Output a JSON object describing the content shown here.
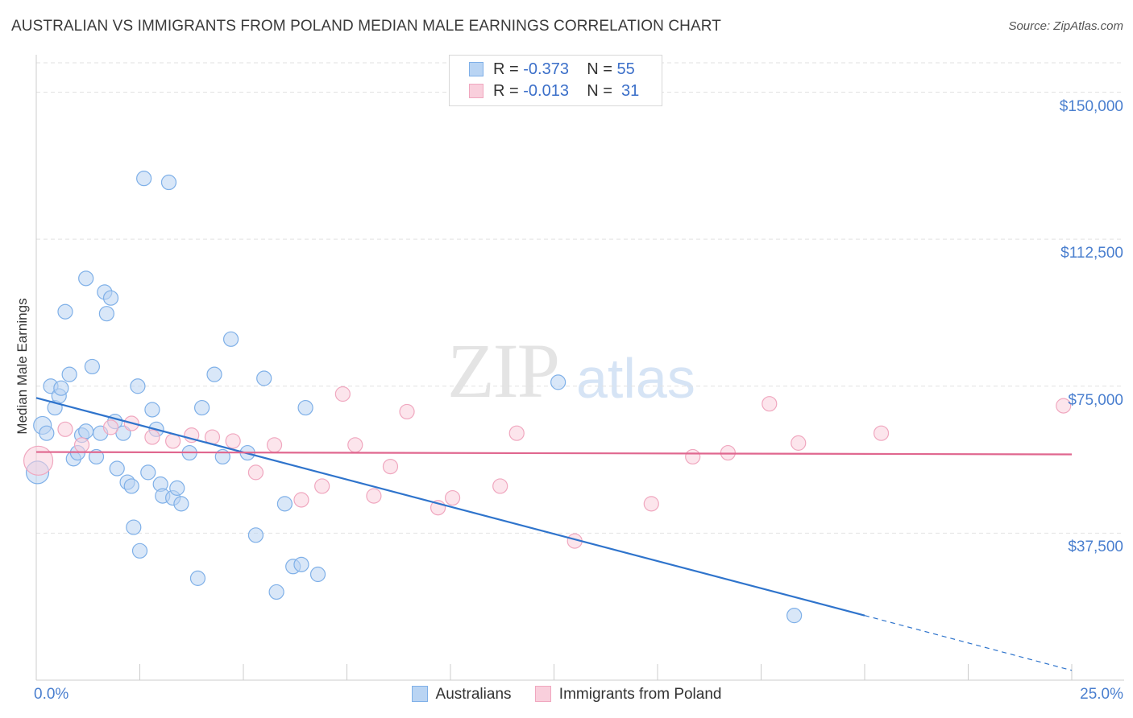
{
  "chart_data": {
    "type": "scatter",
    "title": "AUSTRALIAN VS IMMIGRANTS FROM POLAND MEDIAN MALE EARNINGS CORRELATION CHART",
    "source": "Source: ZipAtlas.com",
    "ylabel": "Median Male Earnings",
    "xlabel": "",
    "xlim": [
      0,
      25
    ],
    "ylim": [
      0,
      157500
    ],
    "x_tick_labels": {
      "left": "0.0%",
      "right": "25.0%"
    },
    "y_ticks": [
      {
        "value": 37500,
        "label": "$37,500"
      },
      {
        "value": 75000,
        "label": "$75,000"
      },
      {
        "value": 112500,
        "label": "$112,500"
      },
      {
        "value": 150000,
        "label": "$150,000"
      }
    ],
    "grid": true,
    "watermark": {
      "zip": "ZIP",
      "atlas": "atlas"
    },
    "legend": [
      {
        "name": "Australians",
        "r_label": "R = ",
        "r": "-0.373",
        "n_label": "N = ",
        "n": "55",
        "color": "#7fb0e8",
        "fill": "#b9d4f3"
      },
      {
        "name": "Immigrants from Poland",
        "r_label": "R = ",
        "r": "-0.013",
        "n_label": "N = ",
        "n": "31",
        "color": "#f0a7bf",
        "fill": "#f9cfdc"
      }
    ],
    "series": [
      {
        "name": "Australians",
        "color": "#7fb0e8",
        "line_color": "#2f74cc",
        "trend": {
          "x0": 0,
          "y0": 72000,
          "x1": 20,
          "y1": 16500,
          "dash_to_x": 25,
          "dash_to_y": 2500
        },
        "points": [
          [
            0.03,
            53000,
            14
          ],
          [
            0.15,
            65000,
            11
          ],
          [
            0.25,
            63000,
            9
          ],
          [
            0.35,
            75000,
            9
          ],
          [
            0.45,
            69500,
            9
          ],
          [
            0.55,
            72500,
            9
          ],
          [
            0.6,
            74500,
            9
          ],
          [
            0.7,
            94000,
            9
          ],
          [
            0.8,
            78000,
            9
          ],
          [
            0.9,
            56500,
            9
          ],
          [
            1.0,
            58000,
            9
          ],
          [
            1.1,
            62500,
            9
          ],
          [
            1.2,
            63500,
            9
          ],
          [
            1.2,
            102500,
            9
          ],
          [
            1.35,
            80000,
            9
          ],
          [
            1.45,
            57000,
            9
          ],
          [
            1.55,
            63000,
            9
          ],
          [
            1.65,
            99000,
            9
          ],
          [
            1.7,
            93500,
            9
          ],
          [
            1.8,
            97500,
            9
          ],
          [
            1.9,
            66000,
            9
          ],
          [
            1.95,
            54000,
            9
          ],
          [
            2.1,
            63000,
            9
          ],
          [
            2.2,
            50500,
            9
          ],
          [
            2.3,
            49500,
            9
          ],
          [
            2.35,
            39000,
            9
          ],
          [
            2.45,
            75000,
            9
          ],
          [
            2.5,
            33000,
            9
          ],
          [
            2.6,
            128000,
            9
          ],
          [
            2.7,
            53000,
            9
          ],
          [
            2.8,
            69000,
            9
          ],
          [
            2.9,
            64000,
            9
          ],
          [
            3.0,
            50000,
            9
          ],
          [
            3.05,
            47000,
            9
          ],
          [
            3.2,
            127000,
            9
          ],
          [
            3.3,
            46500,
            9
          ],
          [
            3.4,
            49000,
            9
          ],
          [
            3.5,
            45000,
            9
          ],
          [
            3.7,
            58000,
            9
          ],
          [
            3.9,
            26000,
            9
          ],
          [
            4.0,
            69500,
            9
          ],
          [
            4.3,
            78000,
            9
          ],
          [
            4.5,
            57000,
            9
          ],
          [
            4.7,
            87000,
            9
          ],
          [
            5.1,
            58000,
            9
          ],
          [
            5.3,
            37000,
            9
          ],
          [
            5.5,
            77000,
            9
          ],
          [
            5.8,
            22500,
            9
          ],
          [
            6.0,
            45000,
            9
          ],
          [
            6.2,
            29000,
            9
          ],
          [
            6.4,
            29500,
            9
          ],
          [
            6.5,
            69500,
            9
          ],
          [
            6.8,
            27000,
            9
          ],
          [
            12.6,
            76000,
            9
          ],
          [
            18.3,
            16500,
            9
          ]
        ]
      },
      {
        "name": "Immigrants from Poland",
        "color": "#f0a7bf",
        "line_color": "#e0678f",
        "trend": {
          "x0": 0,
          "y0": 58200,
          "x1": 25,
          "y1": 57600
        },
        "points": [
          [
            0.05,
            56000,
            18
          ],
          [
            0.7,
            64000,
            9
          ],
          [
            1.1,
            60000,
            9
          ],
          [
            1.8,
            64500,
            9
          ],
          [
            2.3,
            65500,
            9
          ],
          [
            2.8,
            62000,
            9
          ],
          [
            3.3,
            61000,
            9
          ],
          [
            3.75,
            62500,
            9
          ],
          [
            4.25,
            62000,
            9
          ],
          [
            4.75,
            61000,
            9
          ],
          [
            5.3,
            53000,
            9
          ],
          [
            5.75,
            60000,
            9
          ],
          [
            6.4,
            46000,
            9
          ],
          [
            6.9,
            49500,
            9
          ],
          [
            7.4,
            73000,
            9
          ],
          [
            7.7,
            60000,
            9
          ],
          [
            8.15,
            47000,
            9
          ],
          [
            8.55,
            54500,
            9
          ],
          [
            8.95,
            68500,
            9
          ],
          [
            9.7,
            44000,
            9
          ],
          [
            10.05,
            46500,
            9
          ],
          [
            11.2,
            49500,
            9
          ],
          [
            11.6,
            63000,
            9
          ],
          [
            13.0,
            35500,
            9
          ],
          [
            14.85,
            45000,
            9
          ],
          [
            15.85,
            57000,
            9
          ],
          [
            16.7,
            58000,
            9
          ],
          [
            17.7,
            70500,
            9
          ],
          [
            18.4,
            60500,
            9
          ],
          [
            20.4,
            63000,
            9
          ],
          [
            24.8,
            70000,
            9
          ]
        ]
      }
    ]
  }
}
